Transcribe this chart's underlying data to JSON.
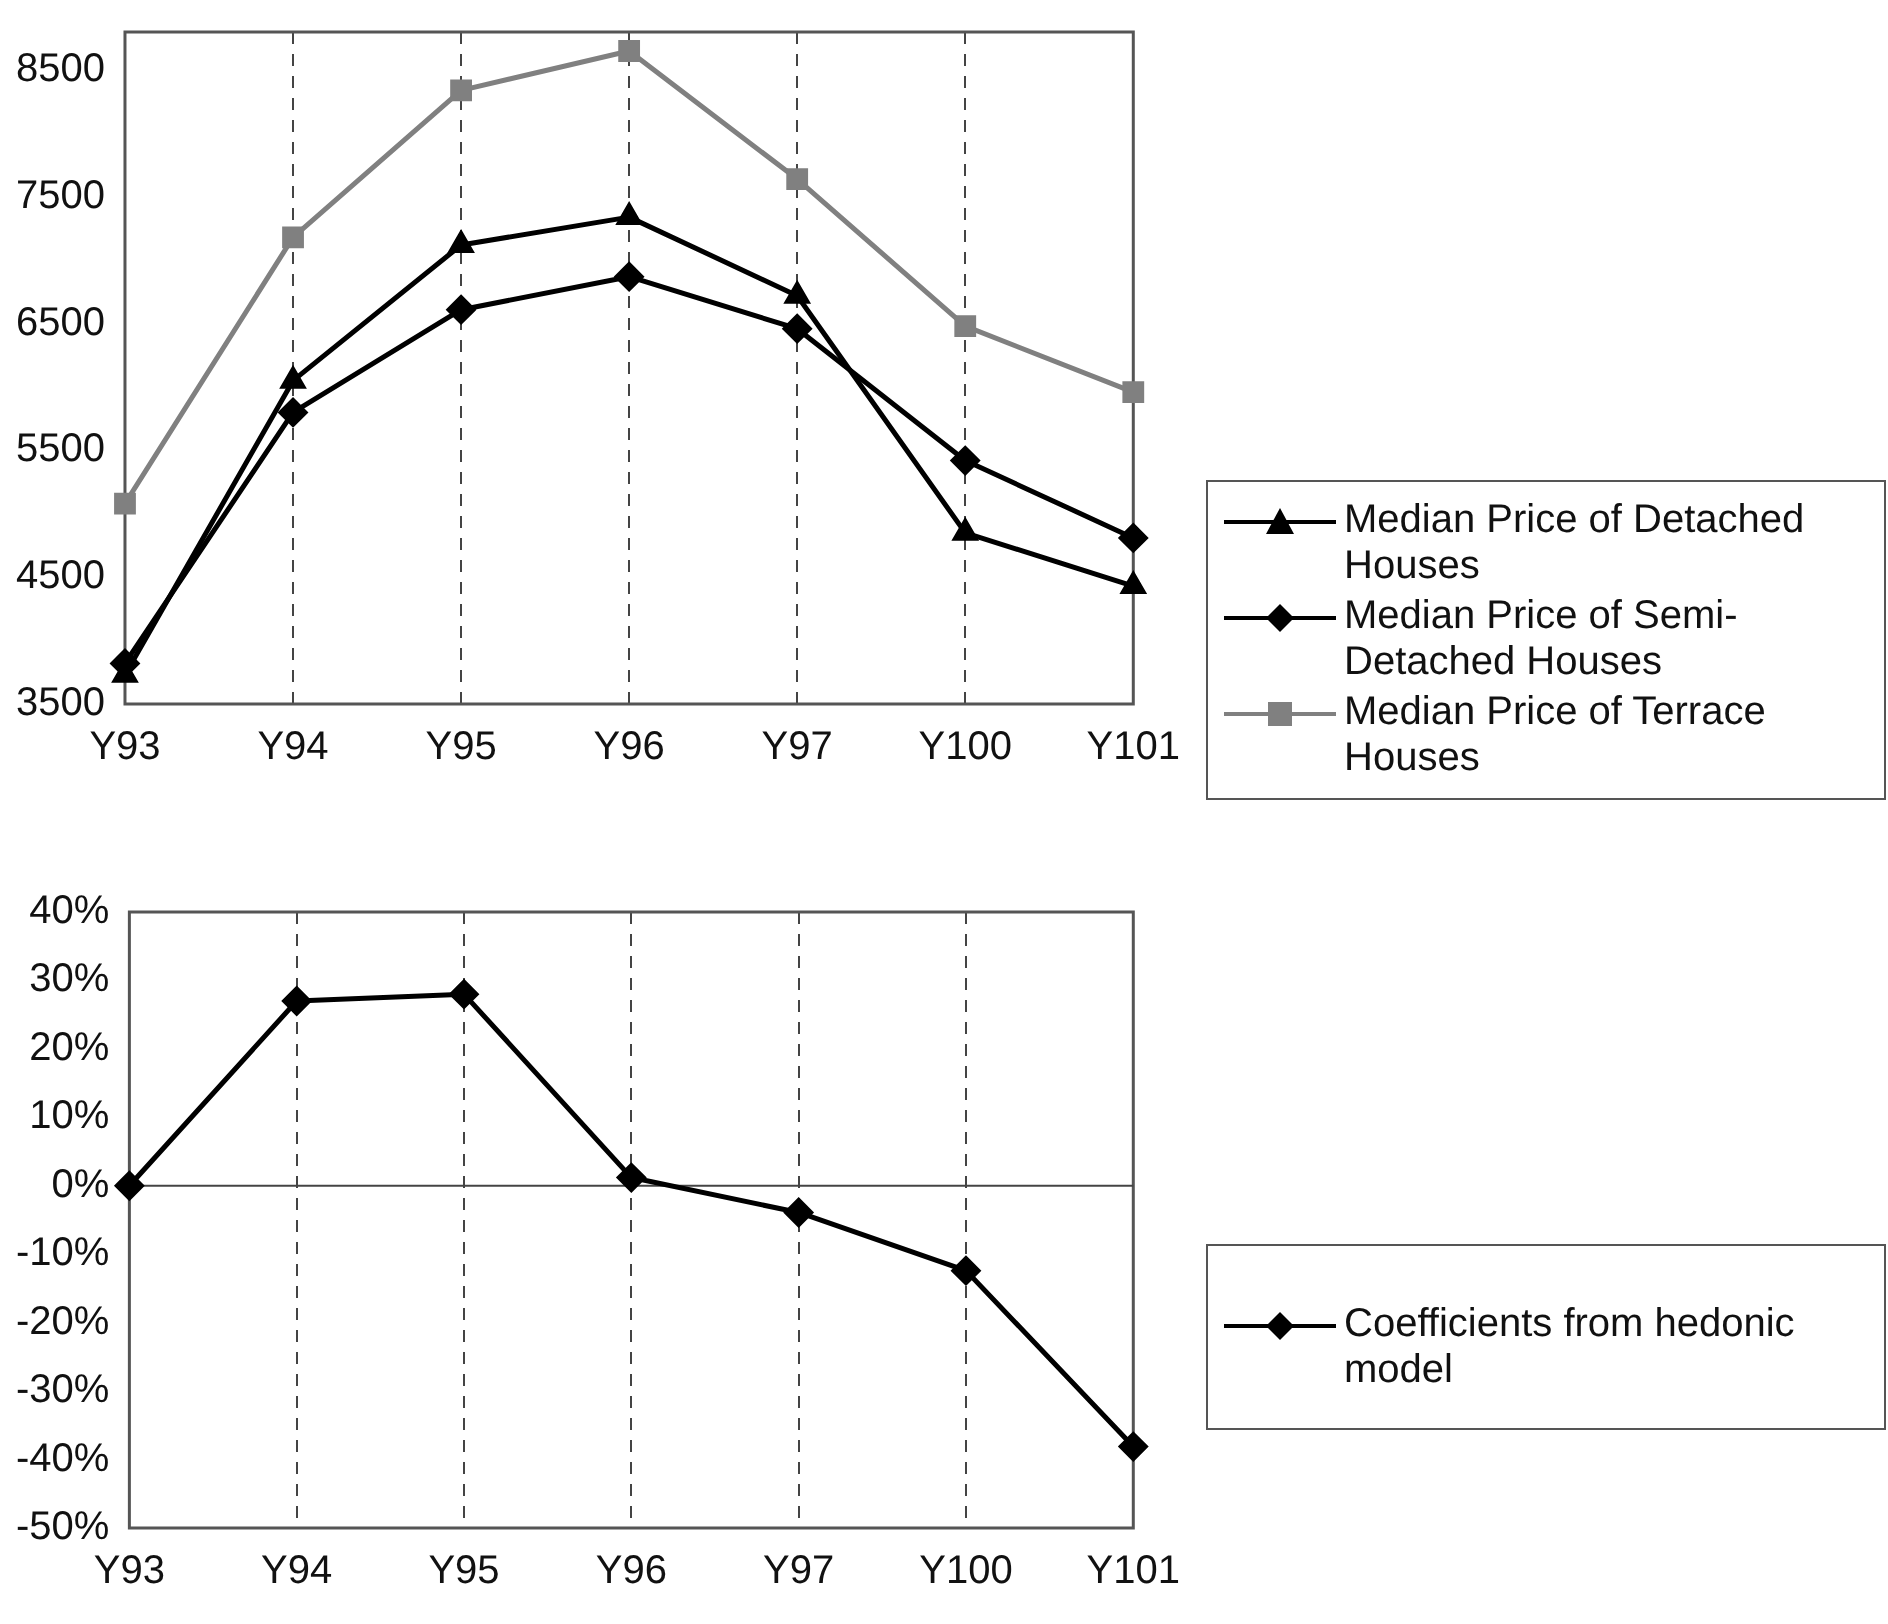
{
  "chart_data": [
    {
      "type": "line",
      "categories": [
        "Y93",
        "Y94",
        "Y95",
        "Y96",
        "Y97",
        "Y100",
        "Y101"
      ],
      "series": [
        {
          "name": "Median Price of Detached Houses",
          "color": "#000000",
          "marker": "triangle",
          "values": [
            3730,
            6050,
            7120,
            7340,
            6720,
            4850,
            4430
          ]
        },
        {
          "name": "Median Price of Semi-Detached Houses",
          "color": "#000000",
          "marker": "diamond",
          "values": [
            3820,
            5800,
            6610,
            6870,
            6460,
            5420,
            4810
          ]
        },
        {
          "name": "Median Price of Terrace Houses",
          "color": "#808080",
          "marker": "square",
          "values": [
            5080,
            7180,
            8340,
            8650,
            7640,
            6480,
            5960
          ]
        }
      ],
      "ylim": [
        3500,
        8800
      ],
      "yticks": [
        3500,
        4500,
        5500,
        6500,
        7500,
        8500
      ],
      "grid": "x",
      "legend": "right",
      "line_style": "solid"
    },
    {
      "type": "line",
      "categories": [
        "Y93",
        "Y94",
        "Y95",
        "Y96",
        "Y97",
        "Y100",
        "Y101"
      ],
      "series": [
        {
          "name": "Coefficients from hedonic model",
          "color": "#000000",
          "marker": "diamond",
          "values": [
            0,
            27,
            28,
            1.2,
            -3.9,
            -12.4,
            -38.1
          ]
        }
      ],
      "ylim": [
        -50,
        40
      ],
      "yticks": [
        {
          "value": -50,
          "label": "-50%"
        },
        {
          "value": -40,
          "label": "-40%"
        },
        {
          "value": -30,
          "label": "-30%"
        },
        {
          "value": -20,
          "label": "-20%"
        },
        {
          "value": -10,
          "label": "-10%"
        },
        {
          "value": 0,
          "label": "0%"
        },
        {
          "value": 10,
          "label": "10%"
        },
        {
          "value": 20,
          "label": "20%"
        },
        {
          "value": 30,
          "label": "30%"
        },
        {
          "value": 40,
          "label": "40%"
        }
      ],
      "grid": "x",
      "legend": "right",
      "line_style": "solid"
    }
  ]
}
